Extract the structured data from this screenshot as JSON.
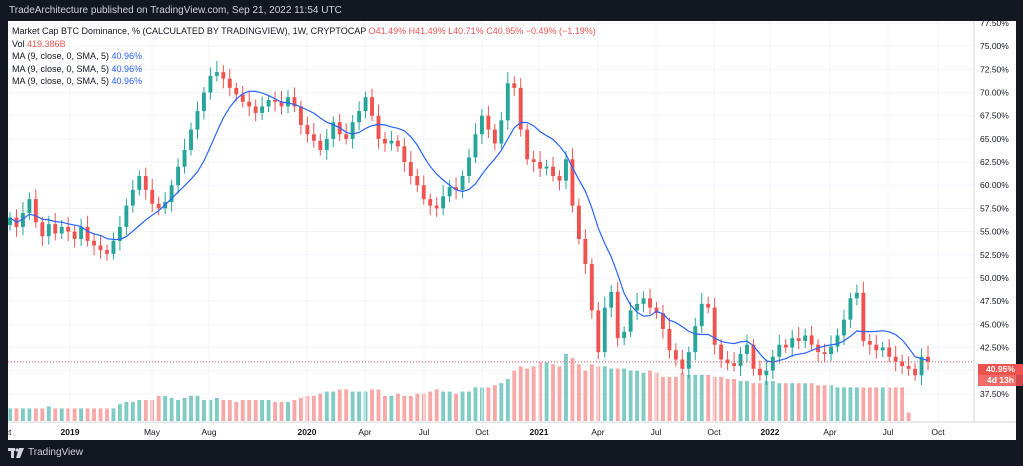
{
  "header": {
    "publish_text": "TradeArchitecture published on TradingView.com, Sep 21, 2022 11:54 UTC"
  },
  "legend": {
    "title": "Market Cap BTC Dominance, % (CALCULATED BY TRADINGVIEW), 1W, CRYPTOCAP",
    "ohlc": "O41.49% H41.49% L40.71% C40.95% −0.49% (−1.19%)",
    "vol_label": "Vol",
    "vol_value": "419.386B",
    "ma_rows": [
      {
        "label": "MA (9, close, 0, SMA, 5)",
        "value": "40.96%"
      },
      {
        "label": "MA (9, close, 0, SMA, 5)",
        "value": "40.96%"
      },
      {
        "label": "MA (9, close, 0, SMA, 5)",
        "value": "40.96%"
      }
    ]
  },
  "footer": {
    "brand": "TradingView"
  },
  "price_badge": {
    "value": "40.95%",
    "countdown": "4d 13h"
  },
  "colors": {
    "up": "#26a69a",
    "down": "#ef5350",
    "ma": "#2962ff",
    "vol_up": "#80cbc4",
    "vol_down": "#f7a9a7"
  },
  "chart_data": {
    "type": "candlestick",
    "ylim": [
      35,
      77.5
    ],
    "y_ticks": [
      "37.50%",
      "40.00%",
      "42.50%",
      "45.00%",
      "47.50%",
      "50.00%",
      "52.50%",
      "55.00%",
      "57.50%",
      "60.00%",
      "62.50%",
      "65.00%",
      "67.50%",
      "70.00%",
      "72.50%",
      "75.00%",
      "77.50%"
    ],
    "x_ticks": [
      "ct",
      "2019",
      "May",
      "Aug",
      "2020",
      "Apr",
      "Jul",
      "Oct",
      "2021",
      "Apr",
      "Jul",
      "Oct",
      "2022",
      "Apr",
      "Jul",
      "Oct"
    ],
    "close": [
      56.5,
      55.5,
      57,
      58.5,
      56,
      54.5,
      55.8,
      54.8,
      55.5,
      55,
      54.2,
      55.5,
      54,
      53.5,
      53,
      52.6,
      54,
      55.5,
      57.8,
      59.5,
      61,
      59.5,
      58,
      57.5,
      58.2,
      60,
      62,
      63.8,
      66,
      68,
      70,
      71.8,
      72.2,
      71.5,
      70.5,
      69.8,
      69,
      68.5,
      67.8,
      68.5,
      69.2,
      69,
      68.5,
      69.5,
      68.5,
      66.5,
      65.5,
      64.8,
      63.8,
      65,
      66.8,
      65.5,
      65,
      66.8,
      68,
      69.5,
      67.5,
      65,
      64.5,
      64.8,
      64.2,
      62.5,
      61,
      60,
      58.5,
      57.8,
      57.5,
      58.8,
      59.8,
      59.5,
      61,
      63,
      65.5,
      67.5,
      66,
      64.5,
      67,
      71,
      70.5,
      66,
      62.8,
      62.5,
      61.8,
      62,
      61,
      60.5,
      62.8,
      57.8,
      54.2,
      51.5,
      46.5,
      42,
      46.8,
      48.5,
      43.5,
      44.2,
      46.5,
      47.2,
      47.8,
      46.8,
      46.2,
      44.5,
      42.2,
      41.2,
      40.2,
      42,
      44.8,
      47.2,
      46.8,
      42.8,
      41.2,
      40.8,
      40.5,
      41.8,
      42.8,
      40.2,
      39.5,
      40,
      41.5,
      42.8,
      42.5,
      43.5,
      43.2,
      43.8,
      42.8,
      42,
      41.8,
      42.6,
      43.8,
      45.5,
      47.8,
      48.4,
      43.2,
      42.8,
      42.2,
      42.5,
      41.5,
      41,
      40.5,
      40.2,
      39.5,
      41.5,
      40.95
    ],
    "volume_pct": [
      3,
      3,
      3,
      3,
      3,
      3,
      3.5,
      3,
      3,
      3,
      3,
      3,
      3,
      3,
      3,
      3,
      3,
      4,
      4.5,
      4.5,
      5,
      5,
      5,
      6,
      6,
      5.5,
      5,
      5.5,
      6,
      6,
      5,
      5,
      5.5,
      5,
      5,
      4.5,
      5,
      5,
      5,
      5,
      5,
      4.5,
      4.5,
      4.5,
      5,
      5.5,
      6,
      6,
      6.5,
      7,
      7,
      7.5,
      7.5,
      7,
      7,
      7,
      7.5,
      7.5,
      6,
      6,
      6.5,
      6,
      6,
      6.5,
      6.5,
      7,
      7.5,
      7,
      7,
      6.5,
      7,
      7,
      8,
      8,
      8,
      8.5,
      9,
      10,
      12,
      13,
      12.5,
      13,
      14,
      14,
      13.5,
      13,
      16,
      15,
      13.5,
      12,
      13.5,
      13,
      13,
      12.5,
      12.5,
      12.5,
      12,
      12,
      11.5,
      12,
      11.5,
      10.5,
      10.5,
      10.5,
      11.5,
      11,
      11,
      11,
      11,
      10.5,
      10.5,
      10,
      10,
      9.5,
      9.5,
      9,
      9,
      9.5,
      9.5,
      9,
      9,
      9,
      9,
      9,
      9,
      8.5,
      8.5,
      8.5,
      8,
      8,
      8,
      8,
      8,
      8,
      8,
      8,
      8,
      8,
      8,
      2
    ]
  }
}
